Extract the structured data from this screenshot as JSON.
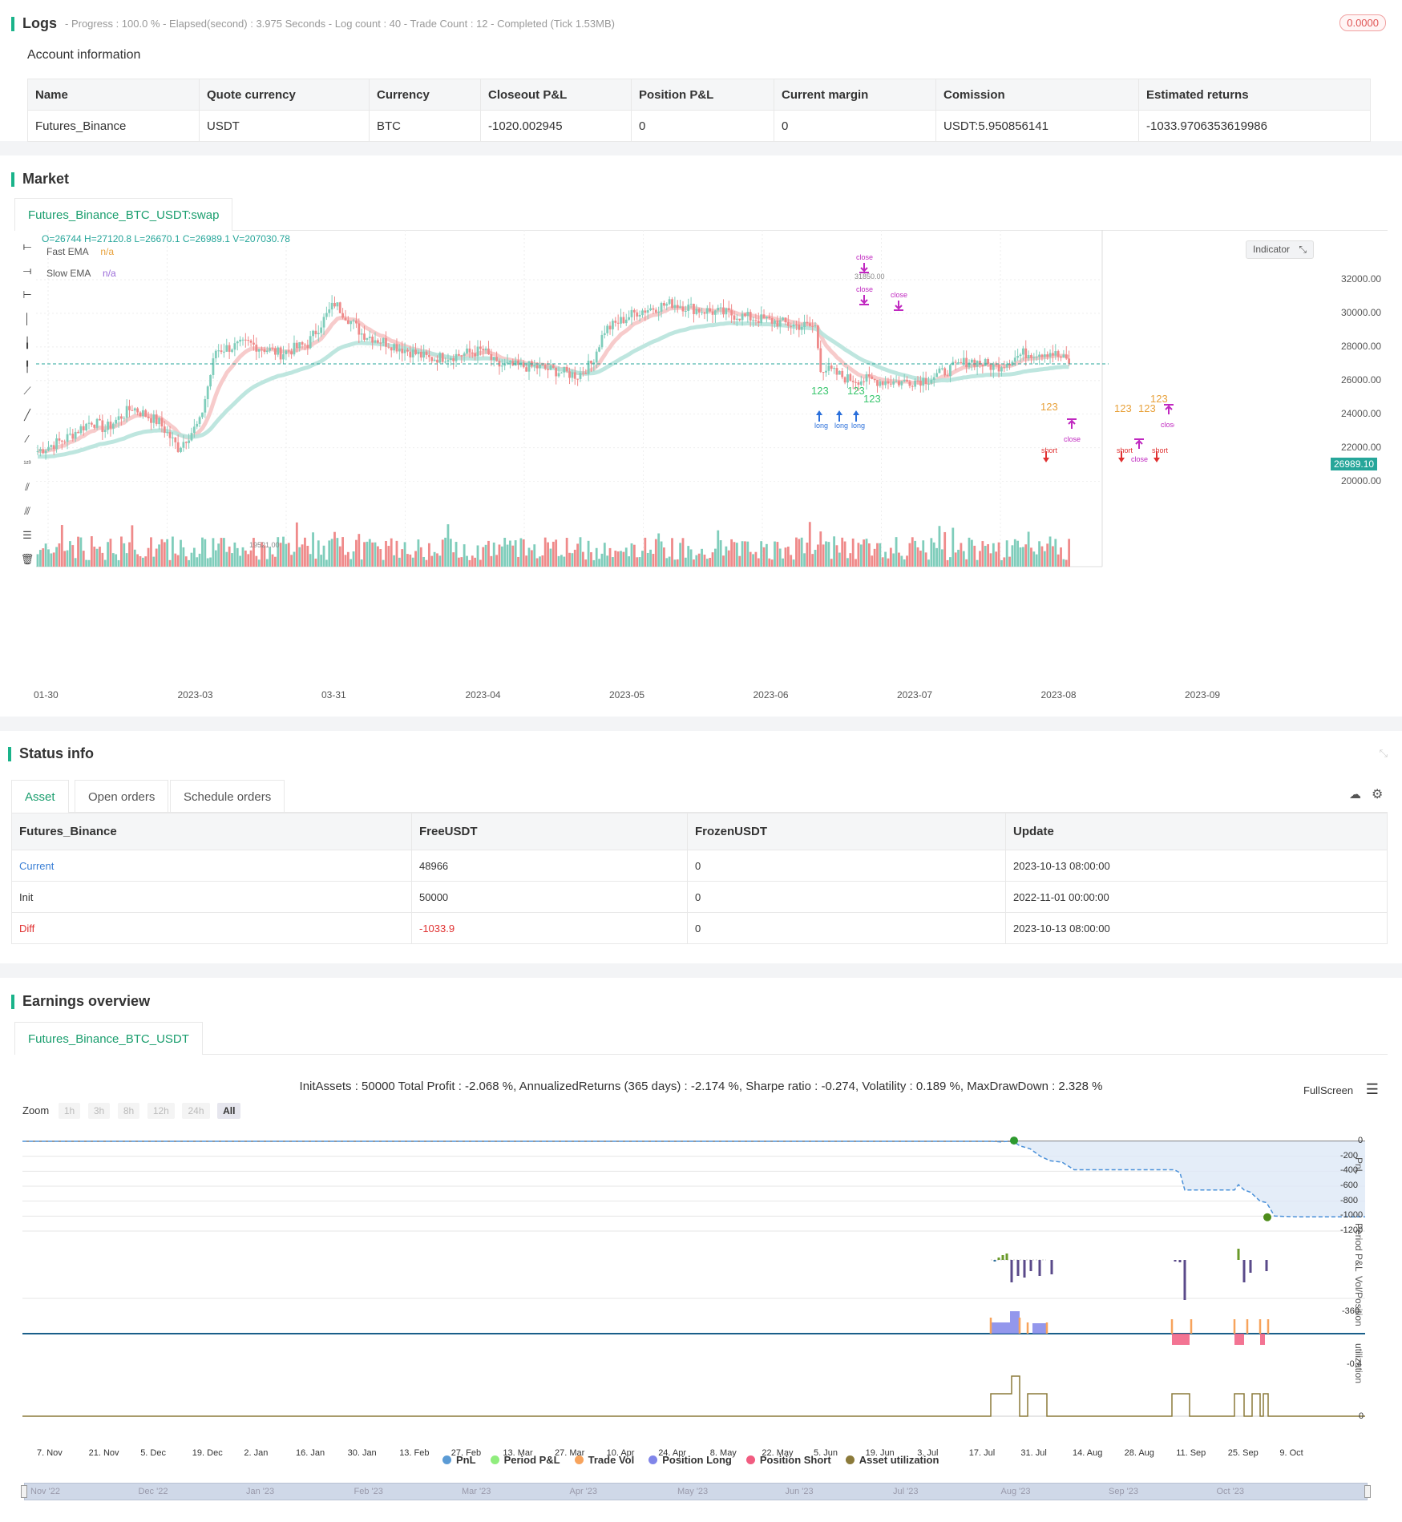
{
  "logs": {
    "title": "Logs",
    "meta": "- Progress : 100.0 % - Elapsed(second) : 3.975  Seconds - Log count : 40 - Trade Count : 12 - Completed (Tick 1.53MB)",
    "badge": "0.0000",
    "badge_color": "#e05555"
  },
  "account": {
    "title": "Account information",
    "columns": [
      "Name",
      "Quote currency",
      "Currency",
      "Closeout P&L",
      "Position P&L",
      "Current margin",
      "Comission",
      "Estimated returns"
    ],
    "row": [
      "Futures_Binance",
      "USDT",
      "BTC",
      "-1020.002945",
      "0",
      "0",
      "USDT:5.950856141",
      "-1033.9706353619986"
    ]
  },
  "market": {
    "title": "Market",
    "tab": "Futures_Binance_BTC_USDT:swap",
    "ohlc": "O=26744 H=27120.8 L=26670.1 C=26989.1 V=207030.78",
    "fast_ema_label": "Fast EMA",
    "fast_ema_value": "n/a",
    "slow_ema_label": "Slow EMA",
    "slow_ema_value": "n/a",
    "indicator_btn": "Indicator",
    "y_ticks": [
      "32000.00",
      "30000.00",
      "28000.00",
      "26000.00",
      "24000.00",
      "22000.00",
      "20000.00"
    ],
    "x_ticks": [
      "01-30",
      "2023-03",
      "03-31",
      "2023-04",
      "2023-05",
      "2023-06",
      "2023-07",
      "2023-08",
      "2023-09"
    ],
    "last_price": "26989.10",
    "high_label": "31850.00",
    "low_label": "19521.00",
    "signal_long": "long",
    "signal_short": "short",
    "signal_close": "close",
    "signal_123": "123",
    "colors": {
      "up": "#7fcdbb",
      "down": "#ef8a8a",
      "fast": "#b7e3dc",
      "slow": "#f6c2c2",
      "close": "#c028c0",
      "long": "#2a6fdb",
      "short": "#e03030"
    }
  },
  "status": {
    "title": "Status info",
    "tabs": [
      "Asset",
      "Open orders",
      "Schedule orders"
    ],
    "columns": [
      "Futures_Binance",
      "FreeUSDT",
      "FrozenUSDT",
      "Update"
    ],
    "rows": [
      [
        "Current",
        "48966",
        "0",
        "2023-10-13 08:00:00"
      ],
      [
        "Init",
        "50000",
        "0",
        "2022-11-01 00:00:00"
      ],
      [
        "Diff",
        "-1033.9",
        "0",
        "2023-10-13 08:00:00"
      ]
    ]
  },
  "earnings": {
    "title": "Earnings overview",
    "tab": "Futures_Binance_BTC_USDT",
    "summary": "InitAssets : 50000 Total Profit : -2.068 %, AnnualizedReturns (365 days) : -2.174 %, Sharpe ratio : -0.274, Volatility : 0.189 %, MaxDrawDown : 2.328 %",
    "fullscreen": "FullScreen",
    "zoom_label": "Zoom",
    "zoom_buttons": [
      "1h",
      "3h",
      "8h",
      "12h",
      "24h",
      "All"
    ],
    "pnl_ticks": [
      "0",
      "-200",
      "-400",
      "-600",
      "-800",
      "-1000",
      "-1200"
    ],
    "pnl_axis": "PnL",
    "period_axis": "Period P&L",
    "period_tick": "-360",
    "vol_axis": "Vol/Position",
    "vol_tick": "-0.4",
    "util_axis": "utilization",
    "util_tick": "0",
    "x_ticks": [
      "7. Nov",
      "21. Nov",
      "5. Dec",
      "19. Dec",
      "2. Jan",
      "16. Jan",
      "30. Jan",
      "13. Feb",
      "27. Feb",
      "13. Mar",
      "27. Mar",
      "10. Apr",
      "24. Apr",
      "8. May",
      "22. May",
      "5. Jun",
      "19. Jun",
      "3. Jul",
      "17. Jul",
      "31. Jul",
      "14. Aug",
      "28. Aug",
      "11. Sep",
      "25. Sep",
      "9. Oct"
    ],
    "nav_ticks": [
      "Nov '22",
      "Dec '22",
      "Jan '23",
      "Feb '23",
      "Mar '23",
      "Apr '23",
      "May '23",
      "Jun '23",
      "Jul '23",
      "Aug '23",
      "Sep '23",
      "Oct '23"
    ],
    "legend": [
      {
        "label": "PnL",
        "color": "#5b9bd5"
      },
      {
        "label": "Period P&L",
        "color": "#90ed7d"
      },
      {
        "label": "Trade Vol",
        "color": "#f7a35c"
      },
      {
        "label": "Position Long",
        "color": "#8085e9"
      },
      {
        "label": "Position Short",
        "color": "#f15c80"
      },
      {
        "label": "Asset utilization",
        "color": "#8b7a3a"
      }
    ]
  }
}
